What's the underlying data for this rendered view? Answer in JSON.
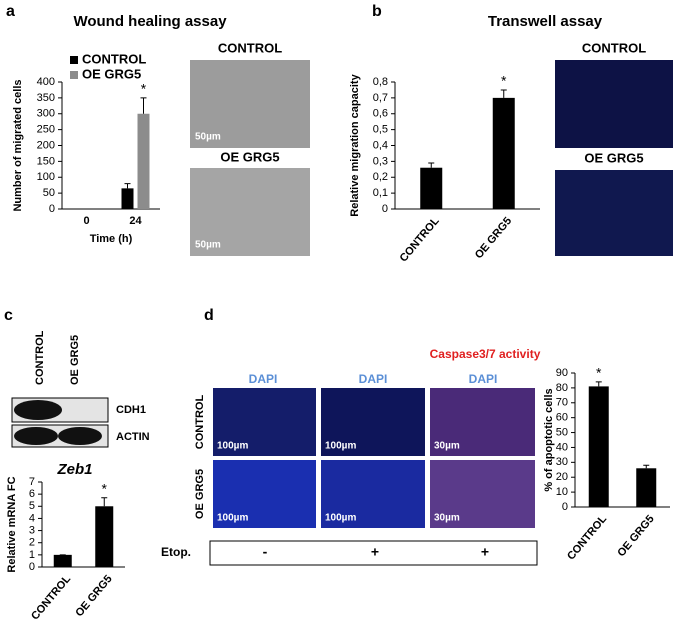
{
  "panels": {
    "a": {
      "letter": "a",
      "images": [
        "CONTROL",
        "OE GRG5"
      ],
      "scale_bars": [
        "50µm",
        "50µm"
      ]
    },
    "b": {
      "letter": "b",
      "images": [
        "CONTROL",
        "OE GRG5"
      ]
    },
    "c": {
      "letter": "c",
      "columns": [
        "CONTROL",
        "OE GRG5"
      ],
      "bands": [
        "CDH1",
        "ACTIN"
      ]
    },
    "d": {
      "letter": "d",
      "header": "Caspase3/7 activity",
      "stains": [
        "DAPI",
        "DAPI",
        "DAPI"
      ],
      "rows": [
        "CONTROL",
        "OE GRG5"
      ],
      "scale_bars": [
        "100µm",
        "100µm",
        "30µm",
        "100µm",
        "100µm",
        "30µm"
      ],
      "treatment": "Etop.",
      "treatment_marks": [
        "-",
        "+",
        "+"
      ]
    }
  },
  "chart_data": [
    {
      "type": "bar",
      "title": "Wound healing assay",
      "y_label": "Number of migrated cells",
      "x_label": "Time (h)",
      "categories": [
        "0",
        "24"
      ],
      "series": [
        {
          "name": "CONTROL",
          "color": "#000000",
          "values": [
            0,
            65
          ],
          "errors": [
            0,
            15
          ]
        },
        {
          "name": "OE GRG5",
          "color": "#8c8c8c",
          "values": [
            0,
            300
          ],
          "errors": [
            0,
            50
          ]
        }
      ],
      "ylim": [
        0,
        400
      ],
      "yticks": [
        0,
        50,
        100,
        150,
        200,
        250,
        300,
        350,
        400
      ],
      "legend": "top-left",
      "annotation": "*"
    },
    {
      "type": "bar",
      "title": "Transwell assay",
      "y_label": "Relative migration capacity",
      "categories": [
        "CONTROL",
        "OE GRG5"
      ],
      "values": [
        0.26,
        0.7
      ],
      "errors": [
        0.03,
        0.05
      ],
      "color": "#000000",
      "ylim": [
        0,
        0.8
      ],
      "yticks": [
        0,
        {
          "value": 0.1,
          "label": "0,1"
        },
        {
          "value": 0.2,
          "label": "0,2"
        },
        {
          "value": 0.3,
          "label": "0,3"
        },
        {
          "value": 0.4,
          "label": "0,4"
        },
        {
          "value": 0.5,
          "label": "0,5"
        },
        {
          "value": 0.6,
          "label": "0,6"
        },
        {
          "value": 0.7,
          "label": "0,7"
        },
        {
          "value": 0.8,
          "label": "0,8"
        }
      ],
      "annotation": "*"
    },
    {
      "type": "bar",
      "title": "Zeb1",
      "y_label": "Relative mRNA FC",
      "categories": [
        "CONTROL",
        "OE GRG5"
      ],
      "values": [
        1,
        5
      ],
      "errors": [
        0,
        0.7
      ],
      "color": "#000000",
      "ylim": [
        0,
        7
      ],
      "yticks": [
        0,
        1,
        2,
        3,
        4,
        5,
        6,
        7
      ],
      "annotation": "*"
    },
    {
      "type": "bar",
      "y_label": "% of apoptotic cells",
      "categories": [
        "CONTROL",
        "OE GRG5"
      ],
      "values": [
        81,
        26
      ],
      "errors": [
        3,
        2
      ],
      "color": "#000000",
      "ylim": [
        0,
        90
      ],
      "yticks": [
        0,
        10,
        20,
        30,
        40,
        50,
        60,
        70,
        80,
        90
      ],
      "annotation": "*"
    }
  ]
}
